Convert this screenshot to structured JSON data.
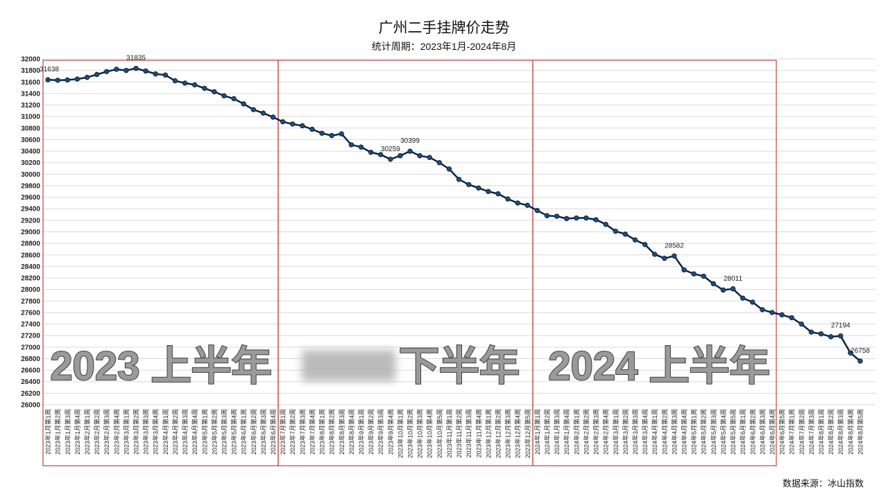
{
  "chart_data": {
    "type": "line",
    "title": "广州二手挂牌价走势",
    "subtitle": "统计周期：2023年1月-2024年8月",
    "source": "数据来源：冰山指数",
    "period_labels": [
      "2023 上半年",
      "下半年",
      "2024 上半年"
    ],
    "categories": [
      "2023年1月第1周",
      "2023年1月第2周",
      "2023年1月第3周",
      "2023年1月第4周",
      "2023年2月第1周",
      "2023年2月第2周",
      "2023年2月第3周",
      "2023年2月第4周",
      "2023年3月第1周",
      "2023年3月第2周",
      "2023年3月第3周",
      "2023年3月第4周",
      "2023年4月第1周",
      "2023年4月第2周",
      "2023年4月第3周",
      "2023年4月第4周",
      "2023年5月第1周",
      "2023年5月第2周",
      "2023年5月第3周",
      "2023年5月第4周",
      "2023年6月第1周",
      "2023年6月第2周",
      "2023年6月第3周",
      "2023年6月第4周",
      "2023年7月第1周",
      "2023年7月第2周",
      "2023年7月第3周",
      "2023年7月第4周",
      "2023年8月第1周",
      "2023年8月第2周",
      "2023年8月第3周",
      "2023年8月第4周",
      "2023年9月第1周",
      "2023年9月第2周",
      "2023年9月第3周",
      "2023年9月第4周",
      "2023年10月第1周",
      "2023年10月第2周",
      "2023年10月第3周",
      "2023年10月第4周",
      "2023年10月第5周",
      "2023年11月第1周",
      "2023年11月第2周",
      "2023年11月第3周",
      "2023年11月第4周",
      "2023年12月第1周",
      "2023年12月第2周",
      "2023年12月第3周",
      "2023年12月第4周",
      "2023年12月第5周",
      "2024年1月第1周",
      "2024年1月第2周",
      "2024年1月第3周",
      "2024年1月第4周",
      "2024年2月第1周",
      "2024年2月第2周",
      "2024年2月第3周",
      "2024年2月第4周",
      "2024年3月第1周",
      "2024年3月第2周",
      "2024年3月第3周",
      "2024年3月第4周",
      "2024年4月第1周",
      "2024年4月第2周",
      "2024年4月第3周",
      "2024年4月第4周",
      "2024年5月第1周",
      "2024年5月第2周",
      "2024年5月第3周",
      "2024年5月第4周",
      "2024年5月第5周",
      "2024年6月第1周",
      "2024年6月第2周",
      "2024年6月第3周",
      "2024年6月第4周",
      "2024年6月第5周",
      "2024年7月第1周",
      "2024年7月第2周",
      "2024年7月第3周",
      "2024年8月第1周",
      "2024年8月第2周",
      "2024年8月第3周",
      "2024年8月第4周",
      "2024年8月第5周"
    ],
    "values": [
      31638,
      31630,
      31635,
      31650,
      31680,
      31730,
      31780,
      31820,
      31800,
      31835,
      31790,
      31740,
      31720,
      31620,
      31580,
      31550,
      31490,
      31430,
      31360,
      31310,
      31220,
      31120,
      31060,
      30990,
      30910,
      30870,
      30840,
      30780,
      30710,
      30670,
      30700,
      30510,
      30470,
      30380,
      30340,
      30259,
      30320,
      30399,
      30320,
      30290,
      30200,
      30090,
      29910,
      29820,
      29760,
      29700,
      29660,
      29570,
      29500,
      29460,
      29370,
      29280,
      29270,
      29230,
      29240,
      29240,
      29210,
      29130,
      29010,
      28960,
      28860,
      28780,
      28610,
      28540,
      28582,
      28340,
      28270,
      28230,
      28100,
      27990,
      28011,
      27850,
      27780,
      27650,
      27600,
      27560,
      27510,
      27400,
      27260,
      27230,
      27180,
      27194,
      26900,
      26758
    ],
    "value_labels": [
      "31638",
      null,
      null,
      null,
      null,
      null,
      null,
      null,
      null,
      "31835",
      null,
      null,
      null,
      null,
      null,
      null,
      null,
      null,
      null,
      null,
      null,
      null,
      null,
      null,
      null,
      null,
      null,
      null,
      null,
      null,
      null,
      null,
      null,
      null,
      null,
      "30259",
      null,
      "30399",
      null,
      null,
      null,
      null,
      null,
      null,
      null,
      null,
      null,
      null,
      null,
      null,
      null,
      null,
      null,
      null,
      null,
      null,
      null,
      null,
      null,
      null,
      null,
      null,
      null,
      null,
      "28582",
      null,
      null,
      null,
      null,
      null,
      "28011",
      null,
      null,
      null,
      null,
      null,
      null,
      null,
      null,
      null,
      null,
      "27194",
      null,
      "26758"
    ],
    "color": "#0b2240",
    "ylim": [
      26000,
      32000
    ],
    "yticks": [
      26000,
      26200,
      26400,
      26600,
      26800,
      27000,
      27200,
      27400,
      27600,
      27800,
      28000,
      28200,
      28400,
      28600,
      28800,
      29000,
      29200,
      29400,
      29600,
      29800,
      30000,
      30200,
      30400,
      30600,
      30800,
      31000,
      31200,
      31400,
      31600,
      31800,
      32000
    ],
    "grid": true
  }
}
